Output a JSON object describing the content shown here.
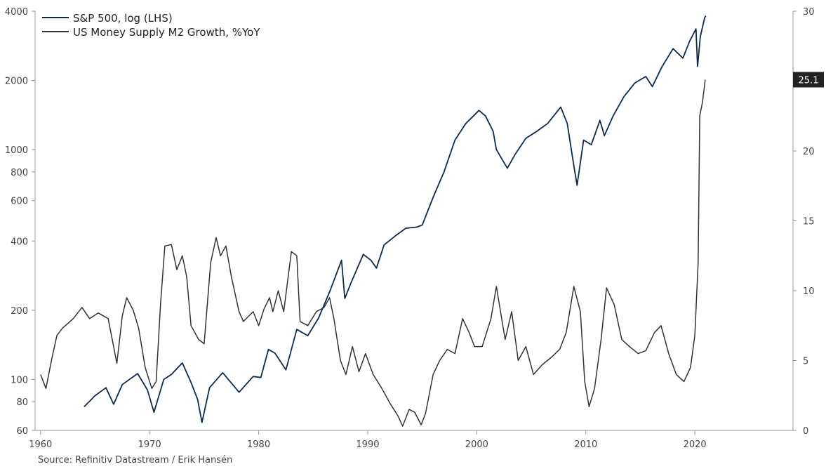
{
  "chart_data": {
    "type": "line",
    "source": "Source: Refinitiv Datastream / Erik Hansén",
    "x_axis": {
      "range": [
        1959.5,
        2029.0
      ],
      "ticks": [
        "1960",
        "1970",
        "1980",
        "1990",
        "2000",
        "2010",
        "2020"
      ]
    },
    "y_left": {
      "scale": "log",
      "range": [
        60,
        4000
      ],
      "ticks": [
        "60",
        "80",
        "100",
        "200",
        "400",
        "600",
        "800",
        "1000",
        "2000",
        "4000"
      ]
    },
    "y_right": {
      "scale": "linear",
      "range": [
        0,
        30
      ],
      "ticks": [
        "0",
        "5",
        "10",
        "15",
        "20",
        "25",
        "30"
      ]
    },
    "last_value_label": "25.1",
    "colors": {
      "sp500": "#0d2a4e",
      "m2": "#333333",
      "badge": "#222222"
    },
    "legend_position": "top-left",
    "grid": false,
    "series": [
      {
        "name": "S&P 500, log (LHS)",
        "axis": "left",
        "points": [
          [
            1964.0,
            76
          ],
          [
            1965.0,
            85
          ],
          [
            1966.0,
            92
          ],
          [
            1966.7,
            78
          ],
          [
            1967.5,
            95
          ],
          [
            1968.9,
            106
          ],
          [
            1969.8,
            90
          ],
          [
            1970.4,
            72
          ],
          [
            1971.3,
            100
          ],
          [
            1972.0,
            105
          ],
          [
            1973.0,
            118
          ],
          [
            1973.8,
            97
          ],
          [
            1974.4,
            82
          ],
          [
            1974.8,
            65
          ],
          [
            1975.5,
            92
          ],
          [
            1976.7,
            107
          ],
          [
            1978.2,
            88
          ],
          [
            1979.5,
            103
          ],
          [
            1980.2,
            102
          ],
          [
            1980.9,
            135
          ],
          [
            1981.5,
            130
          ],
          [
            1982.5,
            110
          ],
          [
            1983.5,
            165
          ],
          [
            1984.5,
            155
          ],
          [
            1985.5,
            185
          ],
          [
            1986.5,
            240
          ],
          [
            1987.6,
            330
          ],
          [
            1987.9,
            225
          ],
          [
            1988.5,
            265
          ],
          [
            1989.6,
            350
          ],
          [
            1990.3,
            330
          ],
          [
            1990.8,
            305
          ],
          [
            1991.5,
            385
          ],
          [
            1992.5,
            420
          ],
          [
            1993.5,
            455
          ],
          [
            1994.5,
            460
          ],
          [
            1995.0,
            470
          ],
          [
            1996.0,
            620
          ],
          [
            1997.0,
            800
          ],
          [
            1998.0,
            1100
          ],
          [
            1999.0,
            1300
          ],
          [
            2000.2,
            1480
          ],
          [
            2000.8,
            1400
          ],
          [
            2001.5,
            1200
          ],
          [
            2001.8,
            1000
          ],
          [
            2002.8,
            830
          ],
          [
            2003.5,
            950
          ],
          [
            2004.5,
            1120
          ],
          [
            2005.5,
            1200
          ],
          [
            2006.5,
            1300
          ],
          [
            2007.7,
            1530
          ],
          [
            2008.3,
            1300
          ],
          [
            2008.9,
            850
          ],
          [
            2009.2,
            700
          ],
          [
            2009.8,
            1100
          ],
          [
            2010.5,
            1050
          ],
          [
            2011.3,
            1340
          ],
          [
            2011.7,
            1150
          ],
          [
            2012.5,
            1400
          ],
          [
            2013.5,
            1700
          ],
          [
            2014.5,
            1950
          ],
          [
            2015.5,
            2080
          ],
          [
            2016.1,
            1880
          ],
          [
            2017.0,
            2300
          ],
          [
            2018.0,
            2750
          ],
          [
            2018.9,
            2500
          ],
          [
            2019.5,
            2950
          ],
          [
            2020.1,
            3350
          ],
          [
            2020.25,
            2300
          ],
          [
            2020.5,
            3100
          ],
          [
            2020.9,
            3750
          ],
          [
            2021.0,
            3820
          ]
        ]
      },
      {
        "name": "US Money Supply M2 Growth, %YoY",
        "axis": "right",
        "points": [
          [
            1960.0,
            4.0
          ],
          [
            1960.5,
            3.0
          ],
          [
            1961.0,
            5.0
          ],
          [
            1961.5,
            6.8
          ],
          [
            1962.0,
            7.3
          ],
          [
            1963.0,
            8.0
          ],
          [
            1963.8,
            8.8
          ],
          [
            1964.5,
            8.0
          ],
          [
            1965.3,
            8.4
          ],
          [
            1966.2,
            8.0
          ],
          [
            1966.7,
            6.0
          ],
          [
            1967.0,
            4.8
          ],
          [
            1967.5,
            8.2
          ],
          [
            1967.9,
            9.5
          ],
          [
            1968.5,
            8.6
          ],
          [
            1969.0,
            7.3
          ],
          [
            1969.6,
            4.5
          ],
          [
            1970.2,
            3.0
          ],
          [
            1970.6,
            3.5
          ],
          [
            1971.0,
            9.0
          ],
          [
            1971.4,
            13.2
          ],
          [
            1972.0,
            13.3
          ],
          [
            1972.5,
            11.5
          ],
          [
            1973.0,
            12.5
          ],
          [
            1973.4,
            11.0
          ],
          [
            1973.8,
            7.5
          ],
          [
            1974.5,
            6.5
          ],
          [
            1975.0,
            6.2
          ],
          [
            1975.6,
            12.0
          ],
          [
            1976.1,
            13.8
          ],
          [
            1976.5,
            12.5
          ],
          [
            1977.0,
            13.2
          ],
          [
            1977.5,
            11.0
          ],
          [
            1978.2,
            8.5
          ],
          [
            1978.6,
            7.8
          ],
          [
            1979.5,
            8.5
          ],
          [
            1980.0,
            7.5
          ],
          [
            1980.5,
            8.7
          ],
          [
            1981.0,
            9.5
          ],
          [
            1981.3,
            8.5
          ],
          [
            1981.8,
            10.0
          ],
          [
            1982.3,
            8.5
          ],
          [
            1983.0,
            12.8
          ],
          [
            1983.5,
            12.5
          ],
          [
            1983.8,
            7.8
          ],
          [
            1984.5,
            7.5
          ],
          [
            1985.3,
            8.5
          ],
          [
            1986.0,
            8.8
          ],
          [
            1986.5,
            9.5
          ],
          [
            1986.9,
            8.0
          ],
          [
            1987.5,
            5.0
          ],
          [
            1988.0,
            4.0
          ],
          [
            1988.6,
            6.0
          ],
          [
            1989.2,
            4.2
          ],
          [
            1989.8,
            5.5
          ],
          [
            1990.5,
            4.0
          ],
          [
            1991.3,
            3.0
          ],
          [
            1992.0,
            2.0
          ],
          [
            1992.8,
            1.0
          ],
          [
            1993.2,
            0.3
          ],
          [
            1993.8,
            1.5
          ],
          [
            1994.3,
            1.3
          ],
          [
            1994.9,
            0.4
          ],
          [
            1995.3,
            1.2
          ],
          [
            1996.0,
            4.0
          ],
          [
            1996.6,
            5.0
          ],
          [
            1997.3,
            5.8
          ],
          [
            1998.0,
            5.5
          ],
          [
            1998.7,
            8.0
          ],
          [
            1999.3,
            7.0
          ],
          [
            1999.8,
            6.0
          ],
          [
            2000.5,
            6.0
          ],
          [
            2001.3,
            8.0
          ],
          [
            2001.8,
            10.3
          ],
          [
            2002.6,
            6.5
          ],
          [
            2003.2,
            8.5
          ],
          [
            2003.8,
            5.0
          ],
          [
            2004.5,
            6.0
          ],
          [
            2005.2,
            4.0
          ],
          [
            2006.0,
            4.7
          ],
          [
            2006.8,
            5.2
          ],
          [
            2007.6,
            5.8
          ],
          [
            2008.2,
            7.0
          ],
          [
            2008.9,
            10.3
          ],
          [
            2009.5,
            8.5
          ],
          [
            2009.9,
            3.5
          ],
          [
            2010.3,
            1.7
          ],
          [
            2010.8,
            3.0
          ],
          [
            2011.4,
            6.5
          ],
          [
            2011.9,
            10.2
          ],
          [
            2012.6,
            9.0
          ],
          [
            2013.3,
            6.5
          ],
          [
            2014.0,
            6.0
          ],
          [
            2014.8,
            5.5
          ],
          [
            2015.5,
            5.7
          ],
          [
            2016.3,
            7.0
          ],
          [
            2016.9,
            7.5
          ],
          [
            2017.6,
            5.5
          ],
          [
            2018.3,
            4.0
          ],
          [
            2019.0,
            3.5
          ],
          [
            2019.6,
            4.5
          ],
          [
            2020.0,
            6.8
          ],
          [
            2020.3,
            12.0
          ],
          [
            2020.45,
            22.5
          ],
          [
            2020.7,
            23.5
          ],
          [
            2020.95,
            25.1
          ]
        ]
      }
    ]
  }
}
